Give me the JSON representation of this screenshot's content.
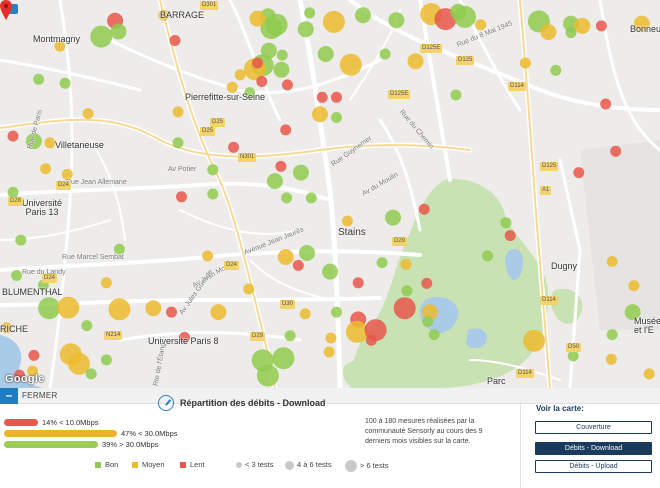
{
  "map": {
    "attribution": "Google",
    "labels": {
      "barrage": "BARRAGE",
      "montmagny": "Montmagny",
      "pierrefitte": "Pierrefitte-sur-Seine",
      "villetaneuse": "Villetaneuse",
      "universite13": "Université\nParis 13",
      "stains": "Stains",
      "dugny": "Dugny",
      "blumenthal": "BLUMENTHAL",
      "riche": "RICHE",
      "univ8": "Université Paris 8",
      "parc": "Parc",
      "bonneu": "Bonneu",
      "musee": "Musée\net l'E",
      "ruejeanallemane": "Rue Jean Allemane",
      "ruemarcelsembat": "Rue Marcel Sembat",
      "avenuejeanjaures": "Avenue Jean Jaurès",
      "rueguynot": "Rue Guynemer",
      "avpotier": "Av Potier",
      "rueduchemin": "Rue du Chemin",
      "avdumoulin": "Av du Moulin",
      "avjeanmoulin": "Av Jean Moulin",
      "rue8mai": "Rue du 8 Mai 1945",
      "rueparis": "Rue de Paris",
      "routeEtang": "Rte de l'Étang",
      "avguesde": "Av Jules Guesde",
      "ruemonti": "Rue du Landy"
    },
    "road_badges": [
      "D301",
      "D125E",
      "D125",
      "D125E",
      "D28",
      "N301",
      "D25",
      "D24",
      "D29",
      "D114",
      "D114",
      "A1",
      "D29",
      "N214",
      "D24",
      "D125",
      "D24",
      "D50",
      "D114",
      "D30",
      "D25"
    ],
    "measurements": [
      {
        "lon": 2.3265,
        "lat": 48.9808,
        "speed": "Lent",
        "tests": "4 à 6 tests"
      },
      {
        "lon": 2.3377,
        "lat": 48.9818,
        "speed": "Moyen",
        "tests": "< 3 tests"
      },
      {
        "lon": 2.3617,
        "lat": 48.9816,
        "speed": "Bon",
        "tests": "4 à 6 tests"
      },
      {
        "lon": 2.3625,
        "lat": 48.9795,
        "speed": "Bon",
        "tests": "> 6 tests"
      },
      {
        "lon": 2.3593,
        "lat": 48.9812,
        "speed": "Moyen",
        "tests": "4 à 6 tests"
      },
      {
        "lon": 2.3637,
        "lat": 48.9801,
        "speed": "Bon",
        "tests": "> 6 tests"
      },
      {
        "lon": 2.3704,
        "lat": 48.9793,
        "speed": "Bon",
        "tests": "4 à 6 tests"
      },
      {
        "lon": 2.3769,
        "lat": 48.9806,
        "speed": "Moyen",
        "tests": "> 6 tests"
      },
      {
        "lon": 2.3836,
        "lat": 48.9818,
        "speed": "Bon",
        "tests": "4 à 6 tests"
      },
      {
        "lon": 2.3713,
        "lat": 48.9822,
        "speed": "Bon",
        "tests": "< 3 tests"
      },
      {
        "lon": 2.3913,
        "lat": 48.9809,
        "speed": "Bon",
        "tests": "4 à 6 tests"
      },
      {
        "lon": 2.3993,
        "lat": 48.982,
        "speed": "Moyen",
        "tests": "> 6 tests"
      },
      {
        "lon": 2.4026,
        "lat": 48.9811,
        "speed": "Lent",
        "tests": "> 6 tests"
      },
      {
        "lon": 2.4055,
        "lat": 48.9824,
        "speed": "Bon",
        "tests": "4 à 6 tests"
      },
      {
        "lon": 2.4071,
        "lat": 48.9815,
        "speed": "Bon",
        "tests": "> 6 tests"
      },
      {
        "lon": 2.4107,
        "lat": 48.9801,
        "speed": "Moyen",
        "tests": "< 3 tests"
      },
      {
        "lon": 2.4241,
        "lat": 48.9807,
        "speed": "Bon",
        "tests": "> 6 tests"
      },
      {
        "lon": 2.4263,
        "lat": 48.9788,
        "speed": "Moyen",
        "tests": "4 à 6 tests"
      },
      {
        "lon": 2.4315,
        "lat": 48.9803,
        "speed": "Bon",
        "tests": "4 à 6 tests"
      },
      {
        "lon": 2.4315,
        "lat": 48.9787,
        "speed": "Bon",
        "tests": "< 3 tests"
      },
      {
        "lon": 2.4341,
        "lat": 48.9799,
        "speed": "Moyen",
        "tests": "4 à 6 tests"
      },
      {
        "lon": 2.4385,
        "lat": 48.9799,
        "speed": "Lent",
        "tests": "< 3 tests"
      },
      {
        "lon": 2.4478,
        "lat": 48.9803,
        "speed": "Moyen",
        "tests": "4 à 6 tests"
      },
      {
        "lon": 2.3138,
        "lat": 48.9763,
        "speed": "Moyen",
        "tests": "< 3 tests"
      },
      {
        "lon": 2.3233,
        "lat": 48.978,
        "speed": "Bon",
        "tests": "> 6 tests"
      },
      {
        "lon": 2.3273,
        "lat": 48.9789,
        "speed": "Bon",
        "tests": "4 à 6 tests"
      },
      {
        "lon": 2.3403,
        "lat": 48.9773,
        "speed": "Lent",
        "tests": "< 3 tests"
      },
      {
        "lon": 2.3619,
        "lat": 48.9755,
        "speed": "Bon",
        "tests": "4 à 6 tests"
      },
      {
        "lon": 2.3605,
        "lat": 48.9729,
        "speed": "Bon",
        "tests": "> 6 tests"
      },
      {
        "lon": 2.3587,
        "lat": 48.9722,
        "speed": "Moyen",
        "tests": "> 6 tests"
      },
      {
        "lon": 2.365,
        "lat": 48.9747,
        "speed": "Bon",
        "tests": "< 3 tests"
      },
      {
        "lon": 2.3648,
        "lat": 48.9721,
        "speed": "Bon",
        "tests": "4 à 6 tests"
      },
      {
        "lon": 2.3593,
        "lat": 48.9733,
        "speed": "Lent",
        "tests": "< 3 tests"
      },
      {
        "lon": 2.375,
        "lat": 48.9749,
        "speed": "Bon",
        "tests": "4 à 6 tests"
      },
      {
        "lon": 2.3808,
        "lat": 48.973,
        "speed": "Moyen",
        "tests": "> 6 tests"
      },
      {
        "lon": 2.3887,
        "lat": 48.9749,
        "speed": "Bon",
        "tests": "< 3 tests"
      },
      {
        "lon": 2.3957,
        "lat": 48.9736,
        "speed": "Moyen",
        "tests": "4 à 6 tests"
      },
      {
        "lon": 2.421,
        "lat": 48.9733,
        "speed": "Moyen",
        "tests": "< 3 tests"
      },
      {
        "lon": 2.428,
        "lat": 48.972,
        "speed": "Bon",
        "tests": "< 3 tests"
      },
      {
        "lon": 2.3089,
        "lat": 48.9704,
        "speed": "Bon",
        "tests": "< 3 tests"
      },
      {
        "lon": 2.315,
        "lat": 48.9697,
        "speed": "Bon",
        "tests": "< 3 tests"
      },
      {
        "lon": 2.3553,
        "lat": 48.9712,
        "speed": "Moyen",
        "tests": "< 3 tests"
      },
      {
        "lon": 2.3535,
        "lat": 48.969,
        "speed": "Moyen",
        "tests": "< 3 tests"
      },
      {
        "lon": 2.3603,
        "lat": 48.97,
        "speed": "Lent",
        "tests": "< 3 tests"
      },
      {
        "lon": 2.3662,
        "lat": 48.9694,
        "speed": "Lent",
        "tests": "< 3 tests"
      },
      {
        "lon": 2.3575,
        "lat": 48.968,
        "speed": "Bon",
        "tests": "< 3 tests"
      },
      {
        "lon": 2.3742,
        "lat": 48.9672,
        "speed": "Lent",
        "tests": "< 3 tests"
      },
      {
        "lon": 2.3775,
        "lat": 48.9672,
        "speed": "Lent",
        "tests": "< 3 tests"
      },
      {
        "lon": 2.405,
        "lat": 48.9676,
        "speed": "Bon",
        "tests": "< 3 tests"
      },
      {
        "lon": 2.4395,
        "lat": 48.966,
        "speed": "Lent",
        "tests": "< 3 tests"
      },
      {
        "lon": 2.3203,
        "lat": 48.9643,
        "speed": "Moyen",
        "tests": "< 3 tests"
      },
      {
        "lon": 2.341,
        "lat": 48.9646,
        "speed": "Moyen",
        "tests": "< 3 tests"
      },
      {
        "lon": 2.3737,
        "lat": 48.9642,
        "speed": "Moyen",
        "tests": "4 à 6 tests"
      },
      {
        "lon": 2.3775,
        "lat": 48.9636,
        "speed": "Bon",
        "tests": "< 3 tests"
      },
      {
        "lon": 2.3658,
        "lat": 48.9614,
        "speed": "Lent",
        "tests": "< 3 tests"
      },
      {
        "lon": 2.303,
        "lat": 48.9603,
        "speed": "Lent",
        "tests": "< 3 tests"
      },
      {
        "lon": 2.3078,
        "lat": 48.9594,
        "speed": "Bon",
        "tests": "4 à 6 tests"
      },
      {
        "lon": 2.3115,
        "lat": 48.9591,
        "speed": "Moyen",
        "tests": "< 3 tests"
      },
      {
        "lon": 2.341,
        "lat": 48.9591,
        "speed": "Bon",
        "tests": "< 3 tests"
      },
      {
        "lon": 2.3538,
        "lat": 48.9583,
        "speed": "Lent",
        "tests": "< 3 tests"
      },
      {
        "lon": 2.4418,
        "lat": 48.9576,
        "speed": "Lent",
        "tests": "< 3 tests"
      },
      {
        "lon": 2.3105,
        "lat": 48.9545,
        "speed": "Moyen",
        "tests": "< 3 tests"
      },
      {
        "lon": 2.3155,
        "lat": 48.9535,
        "speed": "Moyen",
        "tests": "< 3 tests"
      },
      {
        "lon": 2.349,
        "lat": 48.9543,
        "speed": "Bon",
        "tests": "< 3 tests"
      },
      {
        "lon": 2.3647,
        "lat": 48.9549,
        "speed": "Lent",
        "tests": "< 3 tests"
      },
      {
        "lon": 2.3693,
        "lat": 48.9538,
        "speed": "Bon",
        "tests": "4 à 6 tests"
      },
      {
        "lon": 2.3633,
        "lat": 48.9523,
        "speed": "Bon",
        "tests": "4 à 6 tests"
      },
      {
        "lon": 2.4333,
        "lat": 48.9538,
        "speed": "Lent",
        "tests": "< 3 tests"
      },
      {
        "lon": 2.303,
        "lat": 48.9503,
        "speed": "Bon",
        "tests": "< 3 tests"
      },
      {
        "lon": 2.3418,
        "lat": 48.9495,
        "speed": "Lent",
        "tests": "< 3 tests"
      },
      {
        "lon": 2.349,
        "lat": 48.95,
        "speed": "Bon",
        "tests": "< 3 tests"
      },
      {
        "lon": 2.366,
        "lat": 48.9493,
        "speed": "Bon",
        "tests": "< 3 tests"
      },
      {
        "lon": 2.3717,
        "lat": 48.9493,
        "speed": "Bon",
        "tests": "< 3 tests"
      },
      {
        "lon": 2.3977,
        "lat": 48.9473,
        "speed": "Lent",
        "tests": "< 3 tests"
      },
      {
        "lon": 2.38,
        "lat": 48.9452,
        "speed": "Moyen",
        "tests": "< 3 tests"
      },
      {
        "lon": 2.3905,
        "lat": 48.9458,
        "speed": "Bon",
        "tests": "4 à 6 tests"
      },
      {
        "lon": 2.4165,
        "lat": 48.9449,
        "speed": "Bon",
        "tests": "< 3 tests"
      },
      {
        "lon": 2.4175,
        "lat": 48.9426,
        "speed": "Lent",
        "tests": "< 3 tests"
      },
      {
        "lon": 2.3048,
        "lat": 48.9418,
        "speed": "Bon",
        "tests": "< 3 tests"
      },
      {
        "lon": 2.3275,
        "lat": 48.9402,
        "speed": "Bon",
        "tests": "< 3 tests"
      },
      {
        "lon": 2.3478,
        "lat": 48.939,
        "speed": "Moyen",
        "tests": "< 3 tests"
      },
      {
        "lon": 2.3658,
        "lat": 48.9388,
        "speed": "Moyen",
        "tests": "4 à 6 tests"
      },
      {
        "lon": 2.3707,
        "lat": 48.9395,
        "speed": "Bon",
        "tests": "4 à 6 tests"
      },
      {
        "lon": 2.3687,
        "lat": 48.9373,
        "speed": "Lent",
        "tests": "< 3 tests"
      },
      {
        "lon": 2.376,
        "lat": 48.9362,
        "speed": "Bon",
        "tests": "4 à 6 tests"
      },
      {
        "lon": 2.388,
        "lat": 48.9378,
        "speed": "Bon",
        "tests": "< 3 tests"
      },
      {
        "lon": 2.3935,
        "lat": 48.9375,
        "speed": "Moyen",
        "tests": "< 3 tests"
      },
      {
        "lon": 2.4123,
        "lat": 48.939,
        "speed": "Bon",
        "tests": "< 3 tests"
      },
      {
        "lon": 2.441,
        "lat": 48.938,
        "speed": "Moyen",
        "tests": "< 3 tests"
      },
      {
        "lon": 2.3038,
        "lat": 48.9355,
        "speed": "Bon",
        "tests": "< 3 tests"
      },
      {
        "lon": 2.31,
        "lat": 48.9338,
        "speed": "Bon",
        "tests": "< 3 tests"
      },
      {
        "lon": 2.3245,
        "lat": 48.9342,
        "speed": "Moyen",
        "tests": "< 3 tests"
      },
      {
        "lon": 2.3573,
        "lat": 48.9331,
        "speed": "Moyen",
        "tests": "< 3 tests"
      },
      {
        "lon": 2.3825,
        "lat": 48.9342,
        "speed": "Lent",
        "tests": "< 3 tests"
      },
      {
        "lon": 2.3937,
        "lat": 48.9328,
        "speed": "Bon",
        "tests": "< 3 tests"
      },
      {
        "lon": 2.3983,
        "lat": 48.9341,
        "speed": "Lent",
        "tests": "< 3 tests"
      },
      {
        "lon": 2.446,
        "lat": 48.9337,
        "speed": "Moyen",
        "tests": "< 3 tests"
      },
      {
        "lon": 2.3113,
        "lat": 48.9297,
        "speed": "Bon",
        "tests": "> 6 tests"
      },
      {
        "lon": 2.3157,
        "lat": 48.9298,
        "speed": "Moyen",
        "tests": "> 6 tests"
      },
      {
        "lon": 2.3275,
        "lat": 48.9295,
        "speed": "Moyen",
        "tests": "> 6 tests"
      },
      {
        "lon": 2.3353,
        "lat": 48.9297,
        "speed": "Moyen",
        "tests": "4 à 6 tests"
      },
      {
        "lon": 2.3395,
        "lat": 48.929,
        "speed": "Lent",
        "tests": "< 3 tests"
      },
      {
        "lon": 2.3503,
        "lat": 48.929,
        "speed": "Moyen",
        "tests": "4 à 6 tests"
      },
      {
        "lon": 2.3703,
        "lat": 48.9287,
        "speed": "Moyen",
        "tests": "< 3 tests"
      },
      {
        "lon": 2.3775,
        "lat": 48.929,
        "speed": "Bon",
        "tests": "< 3 tests"
      },
      {
        "lon": 2.3825,
        "lat": 48.9277,
        "speed": "Lent",
        "tests": "4 à 6 tests"
      },
      {
        "lon": 2.3932,
        "lat": 48.9297,
        "speed": "Lent",
        "tests": "> 6 tests"
      },
      {
        "lon": 2.399,
        "lat": 48.929,
        "speed": "Moyen",
        "tests": "4 à 6 tests"
      },
      {
        "lon": 2.3985,
        "lat": 48.9273,
        "speed": "Bon",
        "tests": "< 3 tests"
      },
      {
        "lon": 2.4457,
        "lat": 48.929,
        "speed": "Bon",
        "tests": "4 à 6 tests"
      },
      {
        "lon": 2.3015,
        "lat": 48.9262,
        "speed": "Moyen",
        "tests": "< 3 tests"
      },
      {
        "lon": 2.32,
        "lat": 48.9266,
        "speed": "Bon",
        "tests": "< 3 tests"
      },
      {
        "lon": 2.3425,
        "lat": 48.9245,
        "speed": "Lent",
        "tests": "< 3 tests"
      },
      {
        "lon": 2.3668,
        "lat": 48.9248,
        "speed": "Bon",
        "tests": "< 3 tests"
      },
      {
        "lon": 2.3762,
        "lat": 48.9244,
        "speed": "Moyen",
        "tests": "< 3 tests"
      },
      {
        "lon": 2.3822,
        "lat": 48.9255,
        "speed": "Moyen",
        "tests": "> 6 tests"
      },
      {
        "lon": 2.3855,
        "lat": 48.924,
        "speed": "Lent",
        "tests": "< 3 tests"
      },
      {
        "lon": 2.3865,
        "lat": 48.9258,
        "speed": "Lent",
        "tests": "> 6 tests"
      },
      {
        "lon": 2.4,
        "lat": 48.925,
        "speed": "Bon",
        "tests": "< 3 tests"
      },
      {
        "lon": 2.423,
        "lat": 48.9239,
        "speed": "Moyen",
        "tests": "> 6 tests"
      },
      {
        "lon": 2.441,
        "lat": 48.925,
        "speed": "Bon",
        "tests": "< 3 tests"
      },
      {
        "lon": 2.3078,
        "lat": 48.9213,
        "speed": "Lent",
        "tests": "< 3 tests"
      },
      {
        "lon": 2.3163,
        "lat": 48.9215,
        "speed": "Moyen",
        "tests": "> 6 tests"
      },
      {
        "lon": 2.3182,
        "lat": 48.9198,
        "speed": "Moyen",
        "tests": "> 6 tests"
      },
      {
        "lon": 2.3245,
        "lat": 48.9205,
        "speed": "Bon",
        "tests": "< 3 tests"
      },
      {
        "lon": 2.3605,
        "lat": 48.9204,
        "speed": "Bon",
        "tests": "> 6 tests"
      },
      {
        "lon": 2.3653,
        "lat": 48.9208,
        "speed": "Bon",
        "tests": "> 6 tests"
      },
      {
        "lon": 2.3758,
        "lat": 48.9219,
        "speed": "Moyen",
        "tests": "< 3 tests"
      },
      {
        "lon": 2.432,
        "lat": 48.9212,
        "speed": "Bon",
        "tests": "< 3 tests"
      },
      {
        "lon": 2.4408,
        "lat": 48.9206,
        "speed": "Moyen",
        "tests": "< 3 tests"
      },
      {
        "lon": 2.3075,
        "lat": 48.9185,
        "speed": "Moyen",
        "tests": "< 3 tests"
      },
      {
        "lon": 2.3045,
        "lat": 48.9178,
        "speed": "Lent",
        "tests": "< 3 tests"
      },
      {
        "lon": 2.321,
        "lat": 48.918,
        "speed": "Bon",
        "tests": "< 3 tests"
      },
      {
        "lon": 2.3617,
        "lat": 48.9177,
        "speed": "Bon",
        "tests": "> 6 tests"
      },
      {
        "lon": 2.4495,
        "lat": 48.918,
        "speed": "Moyen",
        "tests": "< 3 tests"
      }
    ]
  },
  "panel": {
    "close_label": "FERMER",
    "title": "Répartition des débits - Download",
    "bars": [
      {
        "label": "14% < 10.0Mbps",
        "percent": 14,
        "color": "#e8574b"
      },
      {
        "label": "47% < 30.0Mbps",
        "percent": 47,
        "color": "#e9b32b"
      },
      {
        "label": "39% > 30.0Mbps",
        "percent": 39,
        "color": "#9ecb55"
      }
    ],
    "description": "100 à 180 mesures réalisées par la communauté Sensorly au cours des 9 derniers mois visibles sur la carte.",
    "legend": {
      "bon": "Bon",
      "moyen": "Moyen",
      "lent": "Lent",
      "few": "< 3 tests",
      "mid": "4 à 6 tests",
      "many": "> 6 tests"
    },
    "colors": {
      "bon": "#8fcb4f",
      "moyen": "#ecbb2f",
      "lent": "#e8574b"
    },
    "voir_title": "Voir la carte:",
    "buttons": {
      "couverture": "Couverture",
      "download": "Débits - Download",
      "upload": "Débits - Upload"
    }
  }
}
